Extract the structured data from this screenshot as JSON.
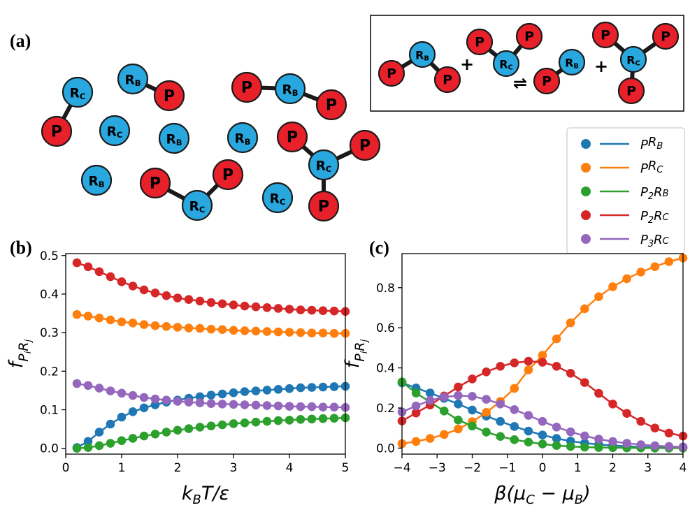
{
  "panels": {
    "a": "(a)",
    "b": "(b)",
    "c": "(c)"
  },
  "atoms": {
    "P": "P",
    "R": "R",
    "B": "B",
    "C": "C"
  },
  "reaction": {
    "plus": "+",
    "equilibrium": "⇌"
  },
  "colors": {
    "P_atom": "#e8202a",
    "R_atom": "#29a8e0",
    "PR_B": "#1f77b4",
    "PR_C": "#ff7f0e",
    "P2R_B": "#2ca02c",
    "P2R_C": "#d62728",
    "P3R_C": "#9467bd"
  },
  "legend": [
    {
      "key": "PR_B",
      "label": [
        "P",
        "R",
        "B"
      ]
    },
    {
      "key": "PR_C",
      "label": [
        "P",
        "R",
        "C"
      ]
    },
    {
      "key": "P2R_B",
      "label": [
        "P",
        "2",
        "R",
        "B"
      ]
    },
    {
      "key": "P2R_C",
      "label": [
        "P",
        "2",
        "R",
        "C"
      ]
    },
    {
      "key": "P3R_C",
      "label": [
        "P",
        "3",
        "R",
        "C"
      ]
    }
  ],
  "chart_data": [
    {
      "id": "b",
      "type": "line",
      "xlabel": "k_BT/ε",
      "ylabel": "f_PiRj",
      "xlim": [
        0,
        5
      ],
      "ylim": [
        -0.015,
        0.505
      ],
      "xticks": [
        "0",
        "1",
        "2",
        "3",
        "4",
        "5"
      ],
      "yticks": [
        "0.0",
        "0.1",
        "0.2",
        "0.3",
        "0.4",
        "0.5"
      ],
      "x": [
        0.2,
        0.4,
        0.6,
        0.8,
        1.0,
        1.2,
        1.4,
        1.6,
        1.8,
        2.0,
        2.2,
        2.4,
        2.6,
        2.8,
        3.0,
        3.2,
        3.4,
        3.6,
        3.8,
        4.0,
        4.2,
        4.4,
        4.6,
        4.8,
        5.0
      ],
      "series": [
        {
          "key": "PR_B",
          "values": [
            0.002,
            0.018,
            0.042,
            0.063,
            0.081,
            0.095,
            0.105,
            0.113,
            0.12,
            0.125,
            0.13,
            0.134,
            0.138,
            0.141,
            0.144,
            0.147,
            0.149,
            0.151,
            0.153,
            0.155,
            0.157,
            0.158,
            0.159,
            0.16,
            0.161
          ]
        },
        {
          "key": "PR_C",
          "values": [
            0.347,
            0.343,
            0.338,
            0.333,
            0.328,
            0.325,
            0.321,
            0.318,
            0.316,
            0.314,
            0.312,
            0.311,
            0.309,
            0.308,
            0.306,
            0.305,
            0.304,
            0.303,
            0.302,
            0.301,
            0.3,
            0.299,
            0.299,
            0.298,
            0.298
          ]
        },
        {
          "key": "P2R_B",
          "values": [
            0.0,
            0.002,
            0.007,
            0.013,
            0.02,
            0.026,
            0.032,
            0.037,
            0.042,
            0.047,
            0.051,
            0.055,
            0.058,
            0.061,
            0.064,
            0.066,
            0.068,
            0.07,
            0.072,
            0.073,
            0.075,
            0.076,
            0.077,
            0.078,
            0.079
          ]
        },
        {
          "key": "P2R_C",
          "values": [
            0.481,
            0.471,
            0.458,
            0.445,
            0.432,
            0.421,
            0.411,
            0.403,
            0.396,
            0.39,
            0.386,
            0.382,
            0.378,
            0.375,
            0.372,
            0.369,
            0.367,
            0.365,
            0.363,
            0.361,
            0.359,
            0.358,
            0.357,
            0.356,
            0.355
          ]
        },
        {
          "key": "P3R_C",
          "values": [
            0.168,
            0.163,
            0.156,
            0.149,
            0.143,
            0.137,
            0.132,
            0.128,
            0.125,
            0.122,
            0.12,
            0.118,
            0.116,
            0.115,
            0.114,
            0.113,
            0.112,
            0.111,
            0.11,
            0.109,
            0.108,
            0.108,
            0.107,
            0.107,
            0.106
          ]
        }
      ]
    },
    {
      "id": "c",
      "type": "line",
      "xlabel": "β(μ_C − μ_B)",
      "ylabel": "f_PiRj",
      "xlim": [
        -4,
        4
      ],
      "ylim": [
        -0.03,
        0.97
      ],
      "xticks": [
        "−4",
        "−3",
        "−2",
        "−1",
        "0",
        "1",
        "2",
        "3",
        "4"
      ],
      "yticks": [
        "0.0",
        "0.2",
        "0.4",
        "0.6",
        "0.8"
      ],
      "x": [
        -4.0,
        -3.6,
        -3.2,
        -2.8,
        -2.4,
        -2.0,
        -1.6,
        -1.2,
        -0.8,
        -0.4,
        0.0,
        0.4,
        0.8,
        1.2,
        1.6,
        2.0,
        2.4,
        2.8,
        3.2,
        3.6,
        4.0
      ],
      "series": [
        {
          "key": "PR_B",
          "values": [
            0.325,
            0.3,
            0.275,
            0.248,
            0.22,
            0.19,
            0.16,
            0.133,
            0.108,
            0.085,
            0.065,
            0.048,
            0.035,
            0.025,
            0.018,
            0.013,
            0.009,
            0.006,
            0.004,
            0.003,
            0.002
          ]
        },
        {
          "key": "PR_C",
          "values": [
            0.022,
            0.033,
            0.048,
            0.068,
            0.095,
            0.132,
            0.178,
            0.233,
            0.298,
            0.39,
            0.463,
            0.545,
            0.625,
            0.695,
            0.755,
            0.805,
            0.845,
            0.878,
            0.905,
            0.93,
            0.948
          ]
        },
        {
          "key": "P2R_B",
          "values": [
            0.33,
            0.275,
            0.23,
            0.185,
            0.14,
            0.11,
            0.08,
            0.058,
            0.042,
            0.03,
            0.02,
            0.013,
            0.008,
            0.005,
            0.003,
            0.002,
            0.001,
            0.001,
            0.0,
            0.0,
            0.0
          ]
        },
        {
          "key": "P2R_C",
          "values": [
            0.135,
            0.175,
            0.215,
            0.26,
            0.305,
            0.345,
            0.38,
            0.408,
            0.425,
            0.433,
            0.428,
            0.408,
            0.373,
            0.327,
            0.273,
            0.22,
            0.173,
            0.133,
            0.1,
            0.075,
            0.06
          ]
        },
        {
          "key": "P3R_C",
          "values": [
            0.18,
            0.21,
            0.238,
            0.255,
            0.262,
            0.258,
            0.243,
            0.22,
            0.192,
            0.163,
            0.133,
            0.105,
            0.081,
            0.061,
            0.045,
            0.033,
            0.024,
            0.017,
            0.012,
            0.008,
            0.006
          ]
        }
      ]
    }
  ]
}
